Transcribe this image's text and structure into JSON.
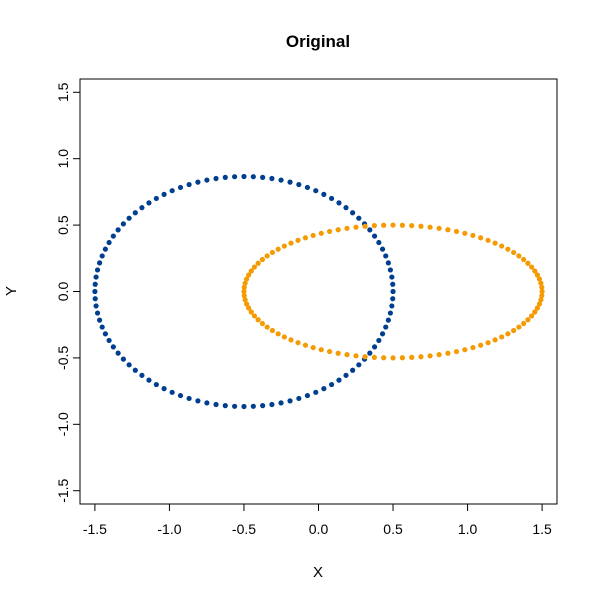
{
  "chart_data": {
    "type": "scatter",
    "title": "Original",
    "xlabel": "X",
    "ylabel": "Y",
    "xlim": [
      -1.6,
      1.6
    ],
    "ylim": [
      -1.6,
      1.6
    ],
    "x_ticks": [
      -1.5,
      -1.0,
      -0.5,
      0.0,
      0.5,
      1.0,
      1.5
    ],
    "x_tick_labels": [
      "-1.5",
      "-1.0",
      "-0.5",
      "0.0",
      "0.5",
      "1.0",
      "1.5"
    ],
    "y_ticks": [
      -1.5,
      -1.0,
      -0.5,
      0.0,
      0.5,
      1.0,
      1.5
    ],
    "y_tick_labels": [
      "-1.5",
      "-1.0",
      "-0.5",
      "0.0",
      "0.5",
      "1.0",
      "1.5"
    ],
    "grid": false,
    "series": [
      {
        "shape": "ellipse",
        "center": [
          -0.5,
          0.0
        ],
        "radius_x": 1.0,
        "radius_y": 0.866,
        "n_points": 100,
        "color": "#003f8f"
      },
      {
        "shape": "ellipse",
        "center": [
          0.5,
          0.0
        ],
        "radius_x": 1.0,
        "radius_y": 0.5,
        "n_points": 100,
        "color": "#f59a00"
      }
    ]
  }
}
